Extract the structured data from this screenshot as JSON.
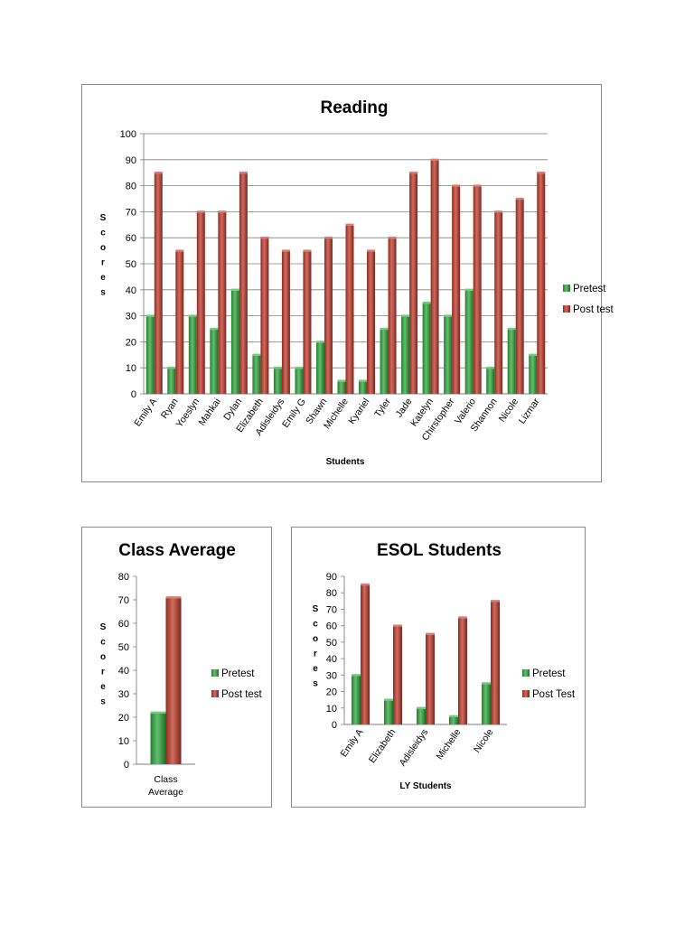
{
  "chart_data": [
    {
      "id": "reading",
      "type": "bar",
      "title": "Reading",
      "xlabel": "Students",
      "ylabel": "Scores",
      "ylim": [
        0,
        100
      ],
      "yticks": [
        0,
        10,
        20,
        30,
        40,
        50,
        60,
        70,
        80,
        90,
        100
      ],
      "grid": true,
      "legend": "right",
      "categories": [
        "Emily A",
        "Ryan",
        "Yoeslyn",
        "Mahkai",
        "Dylan",
        "Elizabeth",
        "Adisleidys",
        "Emily G",
        "Shawn",
        "Michelle",
        "Kyariel",
        "Tyler",
        "Jade",
        "Katelyn",
        "Chirstopher",
        "Valerio",
        "Shannon",
        "Nicole",
        "Lizmar"
      ],
      "series": [
        {
          "name": "Pretest",
          "color": "#2eaa3c",
          "values": [
            30,
            10,
            30,
            25,
            40,
            15,
            10,
            10,
            20,
            5,
            5,
            25,
            30,
            35,
            30,
            40,
            10,
            25,
            15
          ]
        },
        {
          "name": "Post test",
          "color": "#c0392b",
          "values": [
            85,
            55,
            70,
            70,
            85,
            60,
            55,
            55,
            60,
            65,
            55,
            60,
            85,
            90,
            80,
            80,
            70,
            75,
            85
          ]
        }
      ]
    },
    {
      "id": "avg",
      "type": "bar",
      "title": "Class Average",
      "xlabel": "",
      "ylabel": "Scores",
      "ylim": [
        0,
        80
      ],
      "yticks": [
        0,
        10,
        20,
        30,
        40,
        50,
        60,
        70,
        80
      ],
      "grid": false,
      "legend": "right",
      "categories": [
        "Class Average"
      ],
      "series": [
        {
          "name": "Pretest",
          "color": "#2eaa3c",
          "values": [
            22
          ]
        },
        {
          "name": "Post test",
          "color": "#c0392b",
          "values": [
            71
          ]
        }
      ]
    },
    {
      "id": "esol",
      "type": "bar",
      "title": "ESOL Students",
      "xlabel": "LY Students",
      "ylabel": "Scores",
      "ylim": [
        0,
        90
      ],
      "yticks": [
        0,
        10,
        20,
        30,
        40,
        50,
        60,
        70,
        80,
        90
      ],
      "grid": false,
      "legend": "right",
      "categories": [
        "Emily A",
        "Elizabeth",
        "Adisleidys",
        "Michelle",
        "Nicole"
      ],
      "series": [
        {
          "name": "Pretest",
          "color": "#2eaa3c",
          "values": [
            30,
            15,
            10,
            5,
            25
          ]
        },
        {
          "name": "Post Test",
          "color": "#c0392b",
          "values": [
            85,
            60,
            55,
            65,
            75
          ]
        }
      ]
    }
  ]
}
